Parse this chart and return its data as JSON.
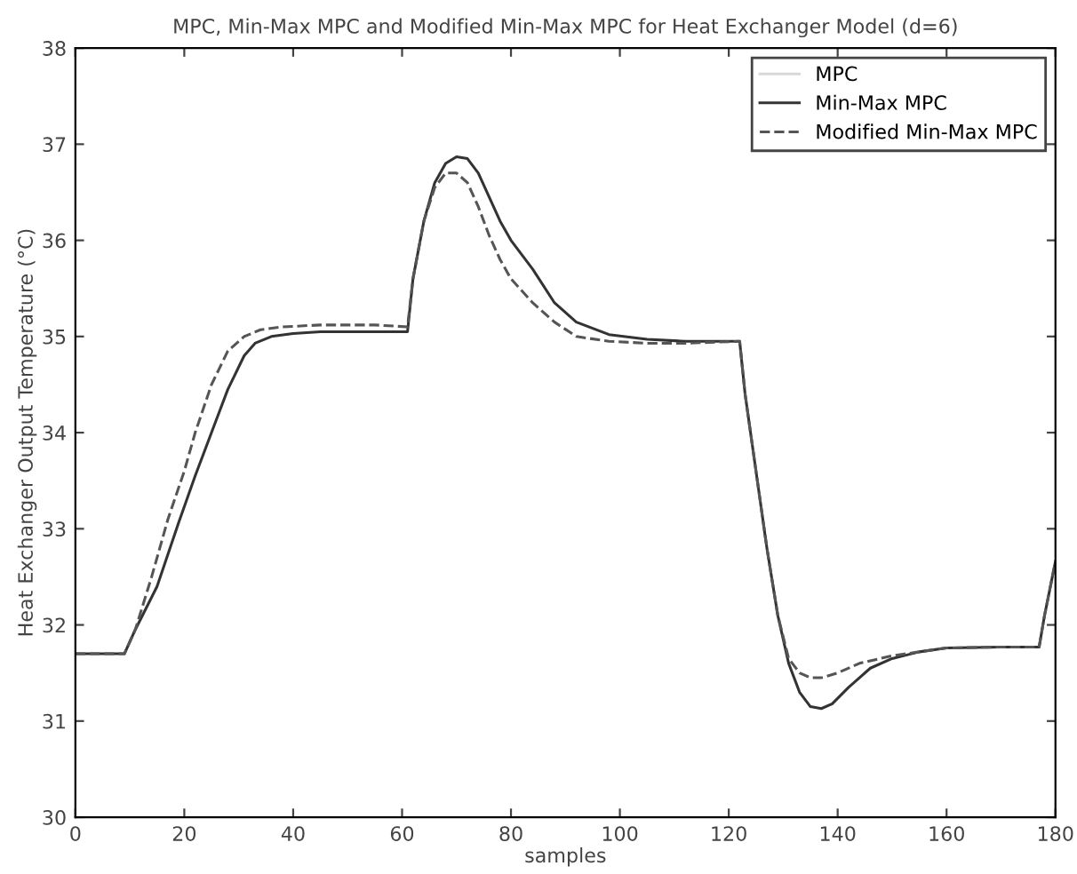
{
  "chart_data": {
    "type": "line",
    "title": "MPC, Min-Max MPC and Modified Min-Max MPC for Heat Exchanger Model (d=6)",
    "xlabel": "samples",
    "ylabel": "Heat Exchanger Output Temperature (°C)",
    "xlim": [
      0,
      180
    ],
    "ylim": [
      30,
      38
    ],
    "xticks": [
      0,
      20,
      40,
      60,
      80,
      100,
      120,
      140,
      160,
      180
    ],
    "yticks": [
      30,
      31,
      32,
      33,
      34,
      35,
      36,
      37,
      38
    ],
    "grid": false,
    "legend": "top right",
    "series": [
      {
        "name": "MPC",
        "color": "#d8d8d8",
        "line_style": "solid"
      },
      {
        "name": "Min-Max MPC",
        "color": "#333333",
        "line_style": "solid",
        "x": [
          0,
          9,
          11,
          15,
          19,
          22,
          25,
          28,
          31,
          33,
          36,
          40,
          45,
          50,
          55,
          61,
          62,
          64,
          66,
          68,
          70,
          72,
          74,
          76,
          78,
          80,
          84,
          88,
          92,
          98,
          105,
          112,
          122,
          123,
          125,
          127,
          129,
          131,
          133,
          135,
          137,
          139,
          142,
          146,
          150,
          155,
          160,
          170,
          177,
          178,
          180
        ],
        "values": [
          31.7,
          31.7,
          31.95,
          32.4,
          33.07,
          33.55,
          34.0,
          34.45,
          34.8,
          34.93,
          35.0,
          35.03,
          35.05,
          35.05,
          35.05,
          35.05,
          35.6,
          36.2,
          36.6,
          36.8,
          36.87,
          36.85,
          36.7,
          36.45,
          36.2,
          36.0,
          35.7,
          35.35,
          35.15,
          35.02,
          34.97,
          34.95,
          34.95,
          34.4,
          33.6,
          32.8,
          32.1,
          31.6,
          31.3,
          31.15,
          31.13,
          31.18,
          31.35,
          31.55,
          31.65,
          31.72,
          31.76,
          31.77,
          31.77,
          32.1,
          32.66
        ]
      },
      {
        "name": "Modified Min-Max MPC",
        "color": "#555555",
        "line_style": "dashed",
        "x": [
          0,
          9,
          11,
          14,
          17,
          20,
          22,
          25,
          28,
          31,
          34,
          38,
          45,
          50,
          55,
          61,
          62,
          64,
          66,
          68,
          70,
          72,
          74,
          76,
          78,
          80,
          84,
          88,
          92,
          98,
          105,
          112,
          122,
          123,
          125,
          127,
          129,
          131,
          133,
          135,
          137,
          140,
          144,
          150,
          155,
          160,
          170,
          177,
          178,
          180
        ],
        "values": [
          31.7,
          31.7,
          31.95,
          32.5,
          33.1,
          33.6,
          34.0,
          34.5,
          34.85,
          35.0,
          35.07,
          35.1,
          35.12,
          35.12,
          35.12,
          35.1,
          35.6,
          36.2,
          36.55,
          36.7,
          36.7,
          36.6,
          36.35,
          36.05,
          35.8,
          35.6,
          35.35,
          35.15,
          35.0,
          34.95,
          34.93,
          34.93,
          34.95,
          34.4,
          33.6,
          32.8,
          32.1,
          31.65,
          31.5,
          31.45,
          31.45,
          31.5,
          31.6,
          31.68,
          31.72,
          31.76,
          31.77,
          31.77,
          32.1,
          32.66
        ]
      }
    ]
  }
}
